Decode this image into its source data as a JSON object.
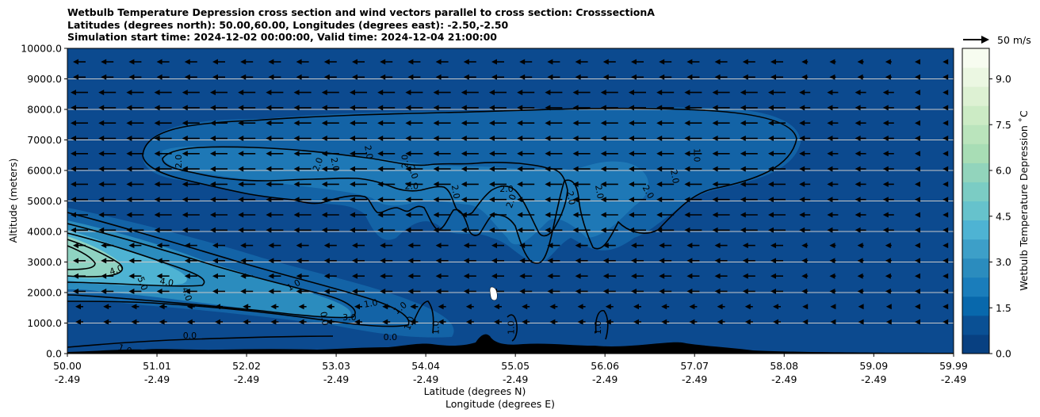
{
  "chart_data": {
    "type": "contourf-cross-section",
    "title": [
      "Wetbulb Temperature Depression cross section and wind vectors parallel to cross section: CrosssectionA",
      "Latitudes (degrees north): 50.00,60.00, Longitudes (degrees east): -2.50,-2.50",
      "Simulation start time: 2024-12-02 00:00:00, Valid time: 2024-12-04 21:00:00"
    ],
    "ylabel": "Altitude (meters)",
    "xlabel_lat": "Latitude (degrees N)",
    "xlabel_lon": "Longitude (degrees E)",
    "ylim": [
      0,
      10000
    ],
    "xlim": [
      50.0,
      59.99
    ],
    "yticks": [
      "0.0",
      "1000.0",
      "2000.0",
      "3000.0",
      "4000.0",
      "5000.0",
      "6000.0",
      "7000.0",
      "8000.0",
      "9000.0",
      "10000.0"
    ],
    "ytick_values": [
      0,
      1000,
      2000,
      3000,
      4000,
      5000,
      6000,
      7000,
      8000,
      9000,
      10000
    ],
    "xticks": [
      {
        "value": 50.0,
        "lat": "50.00",
        "lon": "-2.49"
      },
      {
        "value": 51.01,
        "lat": "51.01",
        "lon": "-2.49"
      },
      {
        "value": 52.02,
        "lat": "52.02",
        "lon": "-2.49"
      },
      {
        "value": 53.03,
        "lat": "53.03",
        "lon": "-2.49"
      },
      {
        "value": 54.04,
        "lat": "54.04",
        "lon": "-2.49"
      },
      {
        "value": 55.05,
        "lat": "55.05",
        "lon": "-2.49"
      },
      {
        "value": 56.06,
        "lat": "56.06",
        "lon": "-2.49"
      },
      {
        "value": 57.07,
        "lat": "57.07",
        "lon": "-2.49"
      },
      {
        "value": 58.08,
        "lat": "58.08",
        "lon": "-2.49"
      },
      {
        "value": 59.09,
        "lat": "59.09",
        "lon": "-2.49"
      },
      {
        "value": 59.99,
        "lat": "59.99",
        "lon": "-2.49"
      }
    ],
    "colorbar": {
      "label": "Wetbulb Temperature Depression $^\\circ$C",
      "label_display": "Wetbulb Temperature Depression ˚C",
      "range": [
        0,
        10
      ],
      "ticks": [
        "0.0",
        "1.5",
        "3.0",
        "4.5",
        "6.0",
        "7.5",
        "9.0"
      ],
      "tick_values": [
        0,
        1.5,
        3.0,
        4.5,
        6.0,
        7.5,
        9.0
      ]
    },
    "quiver_key": "50 m/s",
    "wind_direction": "toward lower latitude (southward along section)",
    "contour_labels": [
      {
        "text": "1.0",
        "lat": 50.65,
        "alt": 150,
        "rot": 20
      },
      {
        "text": "0.0",
        "lat": 51.38,
        "alt": 600,
        "rot": 0
      },
      {
        "text": "4.0",
        "lat": 50.55,
        "alt": 2750,
        "rot": -20
      },
      {
        "text": "5.0",
        "lat": 50.85,
        "alt": 2300,
        "rot": 70
      },
      {
        "text": "4.0",
        "lat": 51.12,
        "alt": 2350,
        "rot": 10
      },
      {
        "text": "4.0",
        "lat": 51.35,
        "alt": 1950,
        "rot": 70
      },
      {
        "text": "1.0",
        "lat": 52.55,
        "alt": 2250,
        "rot": -30
      },
      {
        "text": "1.0",
        "lat": 53.42,
        "alt": 1650,
        "rot": -10
      },
      {
        "text": "1.0",
        "lat": 53.75,
        "alt": 1500,
        "rot": -40
      },
      {
        "text": "3.0",
        "lat": 53.18,
        "alt": 1200,
        "rot": 0
      },
      {
        "text": "0.0",
        "lat": 52.9,
        "alt": 1150,
        "rot": 80
      },
      {
        "text": "1.0",
        "lat": 53.85,
        "alt": 1000,
        "rot": -70
      },
      {
        "text": "0.0",
        "lat": 53.64,
        "alt": 550,
        "rot": 0
      },
      {
        "text": "1.0",
        "lat": 54.15,
        "alt": 850,
        "rot": -90
      },
      {
        "text": "1.0",
        "lat": 55.0,
        "alt": 850,
        "rot": -90
      },
      {
        "text": "1.0",
        "lat": 55.98,
        "alt": 850,
        "rot": -90
      },
      {
        "text": "2.0",
        "lat": 51.25,
        "alt": 6300,
        "rot": -90
      },
      {
        "text": "2.0",
        "lat": 52.82,
        "alt": 6200,
        "rot": -70
      },
      {
        "text": "2.0",
        "lat": 53.02,
        "alt": 6200,
        "rot": 80
      },
      {
        "text": "2.0",
        "lat": 53.4,
        "alt": 6600,
        "rot": 80
      },
      {
        "text": "2.0",
        "lat": 53.8,
        "alt": 6300,
        "rot": -90
      },
      {
        "text": "2.0",
        "lat": 53.9,
        "alt": 5950,
        "rot": 70
      },
      {
        "text": "2.0",
        "lat": 53.88,
        "alt": 5500,
        "rot": 0
      },
      {
        "text": "2.0",
        "lat": 54.38,
        "alt": 5300,
        "rot": 80
      },
      {
        "text": "2.0",
        "lat": 54.95,
        "alt": 5400,
        "rot": 0
      },
      {
        "text": "2.0",
        "lat": 55.0,
        "alt": 5000,
        "rot": -70
      },
      {
        "text": "2.0",
        "lat": 55.68,
        "alt": 5100,
        "rot": 80
      },
      {
        "text": "2.0",
        "lat": 56.0,
        "alt": 5300,
        "rot": 80
      },
      {
        "text": "2.0",
        "lat": 56.55,
        "alt": 5300,
        "rot": 60
      },
      {
        "text": "2.0",
        "lat": 56.85,
        "alt": 5800,
        "rot": 80
      },
      {
        "text": "1.0",
        "lat": 57.1,
        "alt": 6500,
        "rot": 90
      }
    ]
  }
}
